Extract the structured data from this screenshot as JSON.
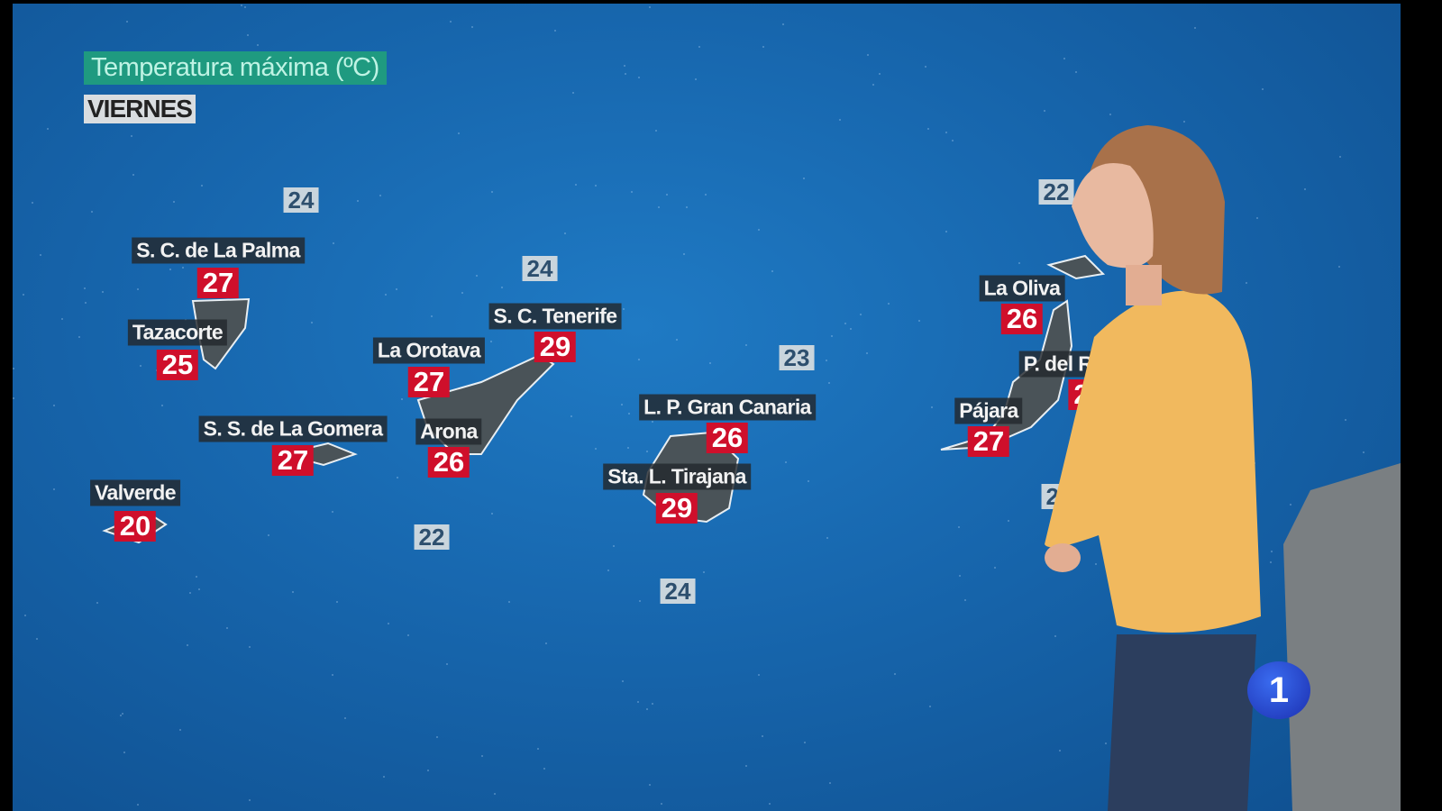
{
  "header": {
    "title": "Temperatura máxima (ºC)",
    "day": "VIERNES"
  },
  "sea_temperatures": [
    "24",
    "24",
    "23",
    "22",
    "24",
    "22",
    "22"
  ],
  "locations": [
    {
      "name": "S. C. de La Palma",
      "value": "27"
    },
    {
      "name": "Tazacorte",
      "value": "25"
    },
    {
      "name": "S. C. Tenerife",
      "value": "29"
    },
    {
      "name": "La Orotava",
      "value": "27"
    },
    {
      "name": "S. S. de La Gomera",
      "value": "27"
    },
    {
      "name": "Arona",
      "value": "26"
    },
    {
      "name": "Valverde",
      "value": "20"
    },
    {
      "name": "L. P. Gran Canaria",
      "value": "26"
    },
    {
      "name": "Sta. L. Tirajana",
      "value": "29"
    },
    {
      "name": "La Oliva",
      "value": "26"
    },
    {
      "name": "P. del R",
      "value": "2"
    },
    {
      "name": "Pájara",
      "value": "27"
    }
  ],
  "channel_logo": "1",
  "colors": {
    "sea": "#1766ad",
    "value_box": "#cf0f2b",
    "title_box": "#1f9a80",
    "land": "#4a5358"
  }
}
